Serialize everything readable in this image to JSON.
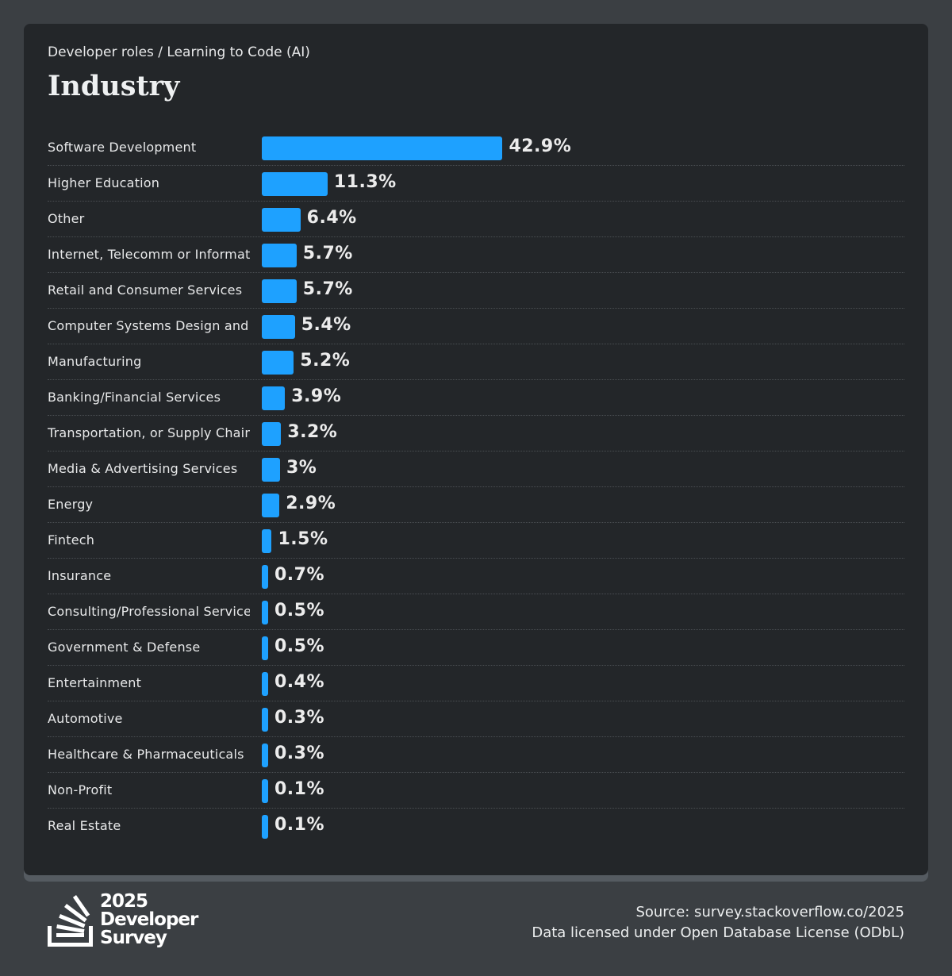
{
  "header": {
    "subtitle": "Developer roles / Learning to Code (AI)",
    "title": "Industry"
  },
  "chart_data": {
    "type": "bar",
    "orientation": "horizontal",
    "title": "Industry",
    "unit": "%",
    "bar_color": "#1ea1ff",
    "categories": [
      "Software Development",
      "Higher Education",
      "Other",
      "Internet, Telecomm or Information Services",
      "Retail and Consumer Services",
      "Computer Systems Design and Services",
      "Manufacturing",
      "Banking/Financial Services",
      "Transportation, or Supply Chain",
      "Media & Advertising Services",
      "Energy",
      "Fintech",
      "Insurance",
      "Consulting/Professional Services",
      "Government & Defense",
      "Entertainment",
      "Automotive",
      "Healthcare & Pharmaceuticals",
      "Non-Profit",
      "Real Estate"
    ],
    "values": [
      42.9,
      11.3,
      6.4,
      5.7,
      5.7,
      5.4,
      5.2,
      3.9,
      3.2,
      3,
      2.9,
      1.5,
      0.7,
      0.5,
      0.5,
      0.4,
      0.3,
      0.3,
      0.1,
      0.1
    ]
  },
  "footer": {
    "logo_lines": [
      "2025",
      "Developer",
      "Survey"
    ],
    "source": "Source: survey.stackoverflow.co/2025",
    "license": "Data licensed under Open Database License (ODbL)"
  }
}
